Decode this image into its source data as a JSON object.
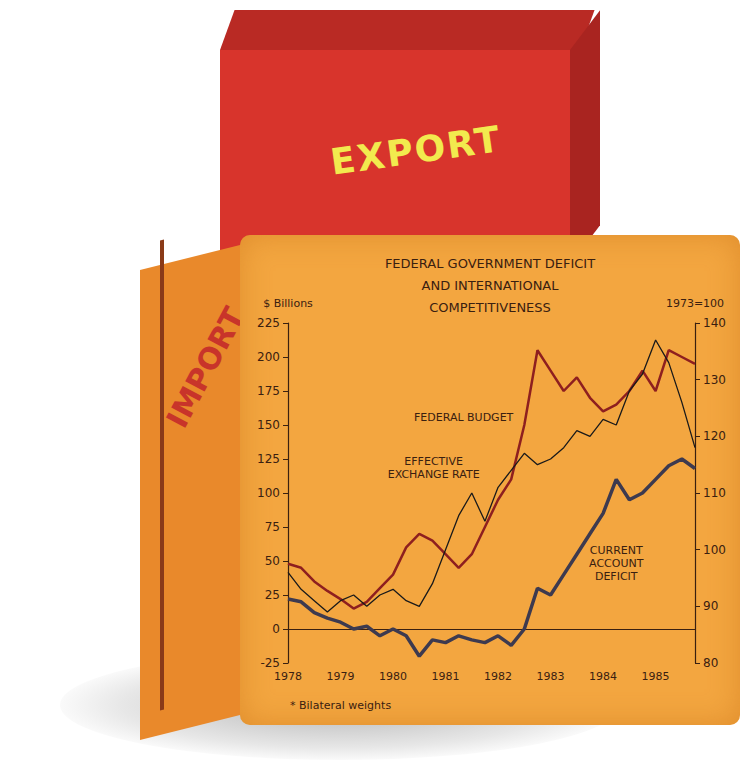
{
  "chart_data": {
    "type": "line",
    "title": "FEDERAL GOVERNMENT DEFICIT AND INTERNATIONAL COMPETITIVENESS",
    "y_label": "$ Billions",
    "y2_label": "1973=100",
    "footnote": "* Bilateral weights",
    "annotations": [
      "EXPORT",
      "IMPORT"
    ],
    "categories": [
      "1978",
      null,
      null,
      null,
      "1979",
      null,
      null,
      null,
      "1980",
      null,
      null,
      null,
      "1981",
      null,
      null,
      null,
      "1982",
      null,
      null,
      null,
      "1983",
      null,
      null,
      null,
      "1984",
      null,
      null,
      null,
      "1985",
      null,
      null,
      null
    ],
    "ylim": [
      -25,
      225
    ],
    "yticks": [
      -25,
      0,
      25,
      50,
      75,
      100,
      125,
      150,
      175,
      200,
      225
    ],
    "y2lim": [
      80,
      140
    ],
    "y2ticks": [
      80,
      90,
      100,
      110,
      120,
      130,
      140
    ],
    "grid": false,
    "series": [
      {
        "name": "FEDERAL BUDGET",
        "color": "#8e1f1f",
        "values": [
          48,
          45,
          35,
          28,
          22,
          15,
          20,
          30,
          40,
          60,
          70,
          65,
          55,
          45,
          55,
          75,
          95,
          110,
          150,
          205,
          190,
          175,
          185,
          170,
          160,
          165,
          175,
          190,
          175,
          205,
          200,
          195
        ]
      },
      {
        "name": "EFFECTIVE EXCHANGE RATE",
        "color": "#1a1a1a",
        "axis": "y2",
        "values": [
          96,
          93,
          91,
          89,
          91,
          92,
          90,
          92,
          93,
          91,
          90,
          94,
          100,
          106,
          110,
          105,
          111,
          114,
          117,
          115,
          116,
          118,
          121,
          120,
          123,
          122,
          128,
          131,
          137,
          133,
          126,
          118
        ]
      },
      {
        "name": "CURRENT ACCOUNT DEFICIT",
        "color": "#3d3a4f",
        "values": [
          22,
          20,
          12,
          8,
          5,
          0,
          2,
          -5,
          0,
          -5,
          -20,
          -8,
          -10,
          -5,
          -8,
          -10,
          -5,
          -12,
          0,
          30,
          25,
          40,
          55,
          70,
          85,
          110,
          95,
          100,
          110,
          120,
          125,
          118
        ]
      }
    ]
  }
}
